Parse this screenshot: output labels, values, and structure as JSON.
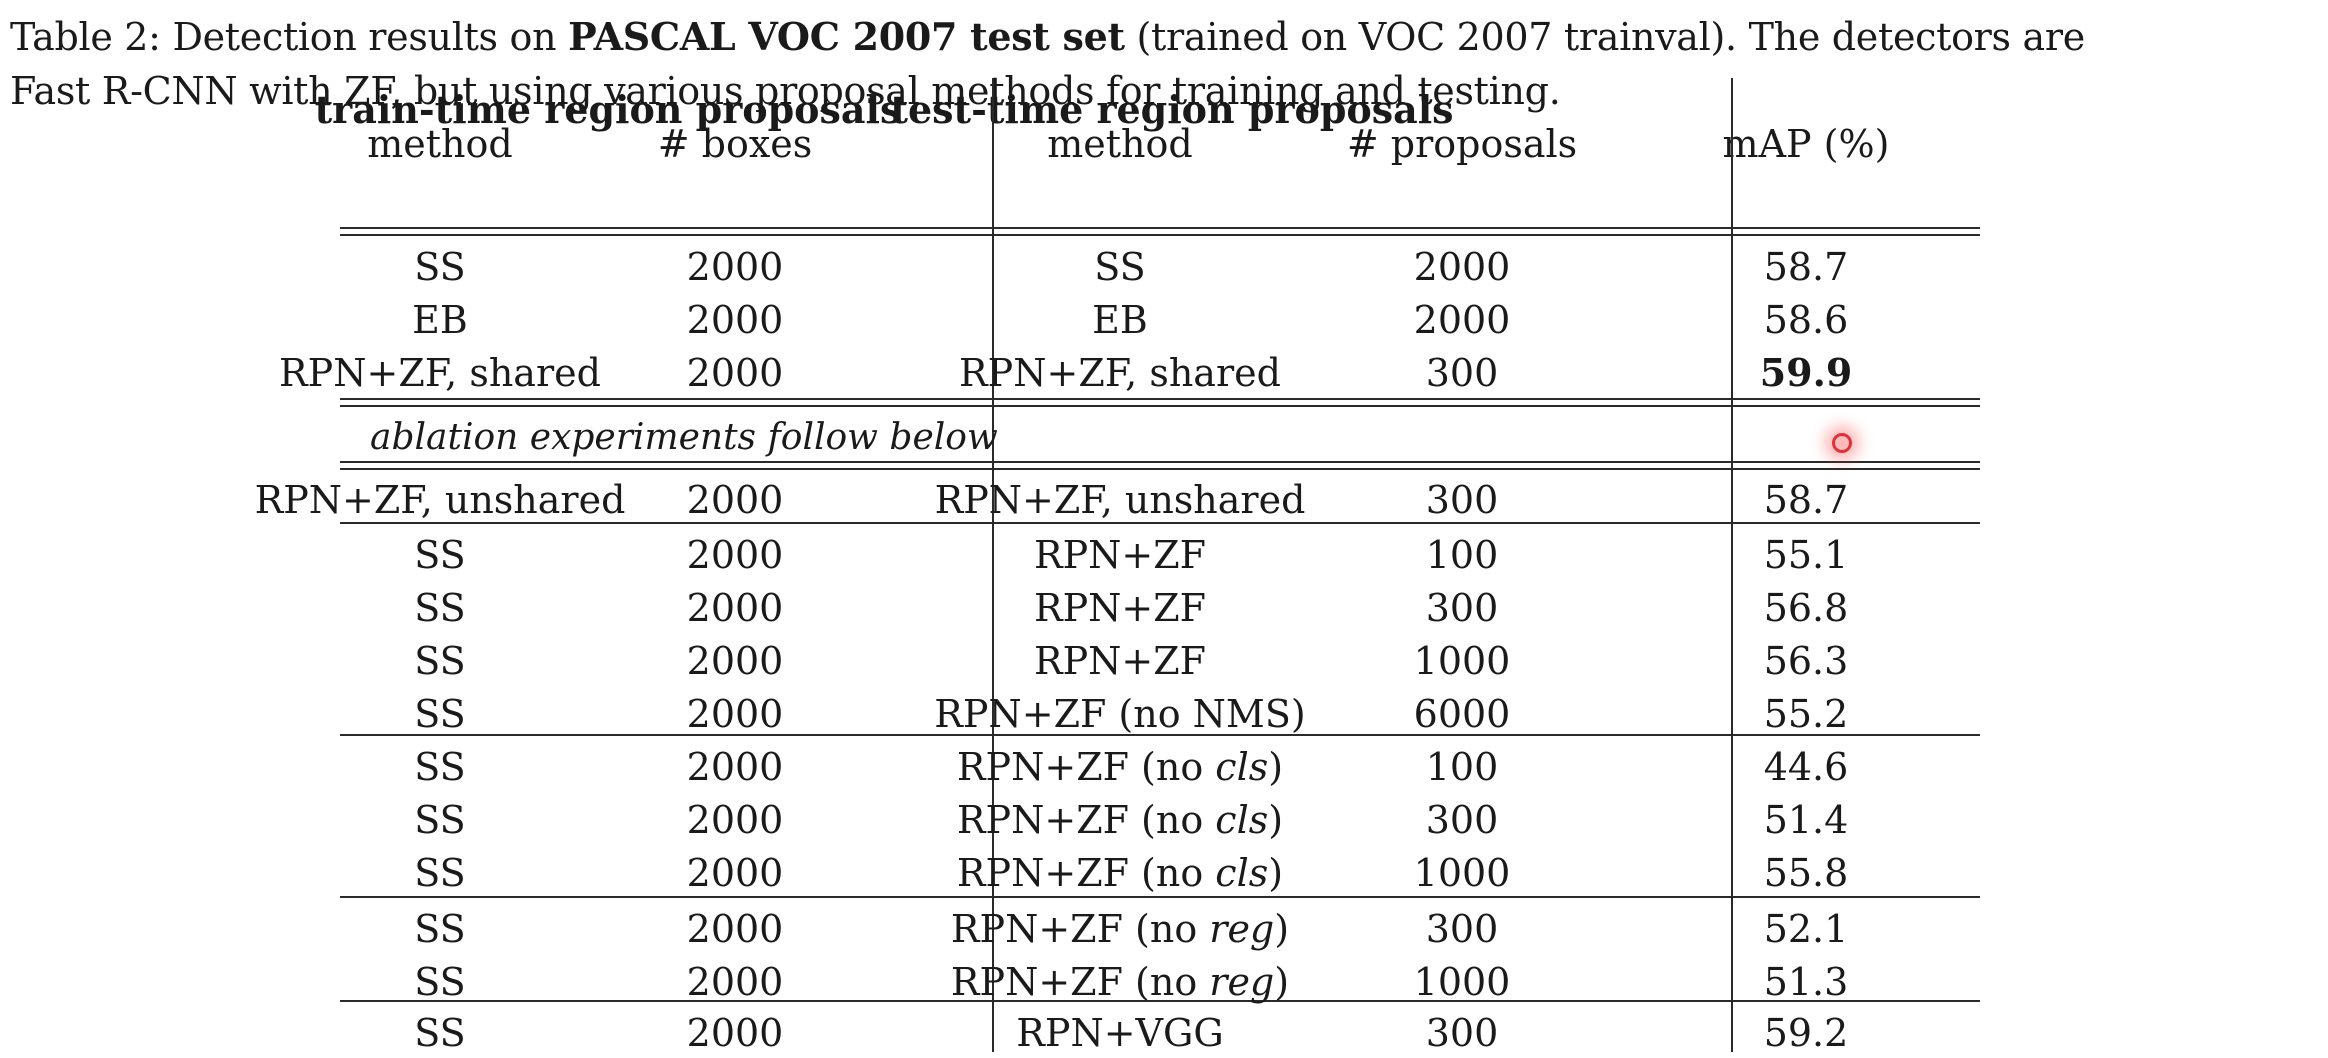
{
  "caption": {
    "prefix": "Table 2: Detection results on ",
    "bold": "PASCAL VOC 2007 test set",
    "line1_suffix": " (trained on VOC 2007 trainval). The detectors are",
    "line2": "Fast R-CNN with ZF, but using various proposal methods for training and testing."
  },
  "headers": {
    "train_group": "train-time region proposals",
    "test_group": "test-time region proposals",
    "train_method": "method",
    "train_boxes": "# boxes",
    "test_method": "method",
    "test_proposals": "# proposals",
    "map": "mAP (%)"
  },
  "ablation_note": "ablation experiments follow below",
  "rows": [
    {
      "train_method": "SS",
      "boxes": "2000",
      "test_pre": "SS",
      "test_em": "",
      "test_post": "",
      "proposals": "2000",
      "map": "58.7"
    },
    {
      "train_method": "EB",
      "boxes": "2000",
      "test_pre": "EB",
      "test_em": "",
      "test_post": "",
      "proposals": "2000",
      "map": "58.6"
    },
    {
      "train_method": "RPN+ZF, shared",
      "boxes": "2000",
      "test_pre": "RPN+ZF, shared",
      "test_em": "",
      "test_post": "",
      "proposals": "300",
      "map": "59.9",
      "map_bold": true
    },
    {
      "train_method": "RPN+ZF, unshared",
      "boxes": "2000",
      "test_pre": "RPN+ZF, unshared",
      "test_em": "",
      "test_post": "",
      "proposals": "300",
      "map": "58.7"
    },
    {
      "train_method": "SS",
      "boxes": "2000",
      "test_pre": "RPN+ZF",
      "test_em": "",
      "test_post": "",
      "proposals": "100",
      "map": "55.1"
    },
    {
      "train_method": "SS",
      "boxes": "2000",
      "test_pre": "RPN+ZF",
      "test_em": "",
      "test_post": "",
      "proposals": "300",
      "map": "56.8"
    },
    {
      "train_method": "SS",
      "boxes": "2000",
      "test_pre": "RPN+ZF",
      "test_em": "",
      "test_post": "",
      "proposals": "1000",
      "map": "56.3"
    },
    {
      "train_method": "SS",
      "boxes": "2000",
      "test_pre": "RPN+ZF (no NMS)",
      "test_em": "",
      "test_post": "",
      "proposals": "6000",
      "map": "55.2"
    },
    {
      "train_method": "SS",
      "boxes": "2000",
      "test_pre": "RPN+ZF (no ",
      "test_em": "cls",
      "test_post": ")",
      "proposals": "100",
      "map": "44.6"
    },
    {
      "train_method": "SS",
      "boxes": "2000",
      "test_pre": "RPN+ZF (no ",
      "test_em": "cls",
      "test_post": ")",
      "proposals": "300",
      "map": "51.4"
    },
    {
      "train_method": "SS",
      "boxes": "2000",
      "test_pre": "RPN+ZF (no ",
      "test_em": "cls",
      "test_post": ")",
      "proposals": "1000",
      "map": "55.8"
    },
    {
      "train_method": "SS",
      "boxes": "2000",
      "test_pre": "RPN+ZF (no ",
      "test_em": "reg",
      "test_post": ")",
      "proposals": "300",
      "map": "52.1"
    },
    {
      "train_method": "SS",
      "boxes": "2000",
      "test_pre": "RPN+ZF (no ",
      "test_em": "reg",
      "test_post": ")",
      "proposals": "1000",
      "map": "51.3"
    },
    {
      "train_method": "SS",
      "boxes": "2000",
      "test_pre": "RPN+VGG",
      "test_em": "",
      "test_post": "",
      "proposals": "300",
      "map": "59.2"
    }
  ]
}
